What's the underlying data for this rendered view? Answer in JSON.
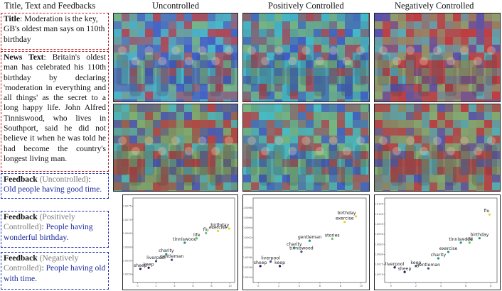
{
  "headers": {
    "col0": "Title, Text and Feedbacks",
    "col1": "Uncontrolled",
    "col2": "Positively Controlled",
    "col3": "Negatively Controlled"
  },
  "title_box": {
    "label": "Title",
    "text": ": Moderation is the key, GB's oldest man says on 110th birthday"
  },
  "news_box": {
    "label": "News Text",
    "text": ": Britain's oldest man has celebrated his 110th birthday by declaring 'moderation in everything and all things' as the secret to a long happy life. John Alfred Tinniswood, who lives in Southport, said he did not believe it when he was told he had become the country's longest living man."
  },
  "feedbacks": [
    {
      "label": "Feedback",
      "qualifier": " (Uncontrolled)",
      "colon": ":",
      "text": " Old people having good time."
    },
    {
      "label": "Feedback",
      "qualifier": " (Positively Controlled)",
      "colon": ":",
      "text": " People having wonderful birthday."
    },
    {
      "label": "Feedback",
      "qualifier": " (Negatively Controlled)",
      "colon": ":",
      "text": " People having old with time."
    }
  ],
  "colors": {
    "point_purple": "#3b0f70",
    "point_blue": "#3b528b",
    "point_teal": "#21918c",
    "point_green": "#5ec962",
    "point_yellow": "#e7d71f",
    "heat_red": "#c8323c",
    "heat_blue": "#3a4fd0",
    "heat_cyan": "#3ec7d6",
    "heat_green": "#7fc27a"
  },
  "chart_data": [
    {
      "type": "scatter",
      "x_ticks": [
        "0",
        "2",
        "4",
        "6",
        "8",
        "10"
      ],
      "y_ticks": [
        "0.0050",
        "0.0055",
        "0.0060",
        "0.0065",
        "0.0070",
        "0.0075"
      ],
      "xlim": [
        -0.5,
        10.5
      ],
      "ylim": [
        0.0047,
        0.0078
      ],
      "points": [
        {
          "label": "sheep",
          "x": 0.3,
          "y": 0.0052,
          "color": "#3b0f70"
        },
        {
          "label": "keep",
          "x": 1.2,
          "y": 0.00524,
          "color": "#3b0f70"
        },
        {
          "label": "liverpool",
          "x": 2.0,
          "y": 0.00548,
          "color": "#3b528b"
        },
        {
          "label": "gentleman",
          "x": 3.7,
          "y": 0.00553,
          "color": "#3b528b"
        },
        {
          "label": "charity",
          "x": 3.1,
          "y": 0.00574,
          "color": "#21918c"
        },
        {
          "label": "tinniswood",
          "x": 5.1,
          "y": 0.00616,
          "color": "#21918c"
        },
        {
          "label": "life",
          "x": 6.4,
          "y": 0.00632,
          "color": "#5ec962"
        },
        {
          "label": "flu",
          "x": 7.4,
          "y": 0.00651,
          "color": "#5ec962"
        },
        {
          "label": "exercise",
          "x": 8.7,
          "y": 0.00659,
          "color": "#e7d71f"
        },
        {
          "label": "birthday",
          "x": 9.9,
          "y": 0.00668,
          "color": "#e7d71f"
        }
      ]
    },
    {
      "type": "scatter",
      "x_ticks": [
        "0",
        "2",
        "4",
        "6",
        "8",
        "10"
      ],
      "y_ticks": [
        "0.0054",
        "0.0056",
        "0.0058",
        "0.0060",
        "0.0062",
        "0.0064",
        "0.0066",
        "0.0068"
      ],
      "xlim": [
        -0.5,
        10.5
      ],
      "ylim": [
        0.0053,
        0.007
      ],
      "points": [
        {
          "label": "sheep",
          "x": 0.2,
          "y": 0.00563,
          "color": "#3b0f70"
        },
        {
          "label": "keep",
          "x": 2.1,
          "y": 0.00563,
          "color": "#3b0f70"
        },
        {
          "label": "liverpool",
          "x": 1.2,
          "y": 0.00572,
          "color": "#3b528b"
        },
        {
          "label": "tinniswood",
          "x": 4.2,
          "y": 0.00592,
          "color": "#3b528b"
        },
        {
          "label": "charity",
          "x": 3.5,
          "y": 0.006,
          "color": "#21918c"
        },
        {
          "label": "gentleman",
          "x": 5.0,
          "y": 0.00614,
          "color": "#21918c"
        },
        {
          "label": "stories",
          "x": 7.2,
          "y": 0.00618,
          "color": "#5ec962"
        },
        {
          "label": "exercise",
          "x": 8.4,
          "y": 0.00652,
          "color": "#e7d71f"
        },
        {
          "label": "birthday",
          "x": 9.5,
          "y": 0.00663,
          "color": "#e7d71f"
        }
      ]
    },
    {
      "type": "scatter",
      "x_ticks": [
        "0",
        "2",
        "4",
        "6",
        "8"
      ],
      "y_ticks": [
        "0.0070",
        "0.0075",
        "0.0080",
        "0.0085",
        "0.0090",
        "0.0095",
        "0.0100",
        "0.0105"
      ],
      "xlim": [
        -0.5,
        8.5
      ],
      "ylim": [
        0.0066,
        0.0108
      ],
      "points": [
        {
          "label": "liverpool",
          "x": 0.3,
          "y": 0.00735,
          "color": "#3b0f70"
        },
        {
          "label": "sheep",
          "x": 1.1,
          "y": 0.00712,
          "color": "#3b0f70"
        },
        {
          "label": "keep",
          "x": 2.0,
          "y": 0.00742,
          "color": "#3b528b"
        },
        {
          "label": "gentleman",
          "x": 3.0,
          "y": 0.0073,
          "color": "#3b528b"
        },
        {
          "label": "charity",
          "x": 3.8,
          "y": 0.0078,
          "color": "#21918c"
        },
        {
          "label": "exercise",
          "x": 4.6,
          "y": 0.00812,
          "color": "#21918c"
        },
        {
          "label": "tinniswood",
          "x": 5.6,
          "y": 0.00858,
          "color": "#21918c"
        },
        {
          "label": "life",
          "x": 6.3,
          "y": 0.00858,
          "color": "#5ec962"
        },
        {
          "label": "birthday",
          "x": 7.1,
          "y": 0.0088,
          "color": "#21918c"
        },
        {
          "label": "flu",
          "x": 7.9,
          "y": 0.00998,
          "color": "#e7d71f"
        }
      ]
    }
  ]
}
